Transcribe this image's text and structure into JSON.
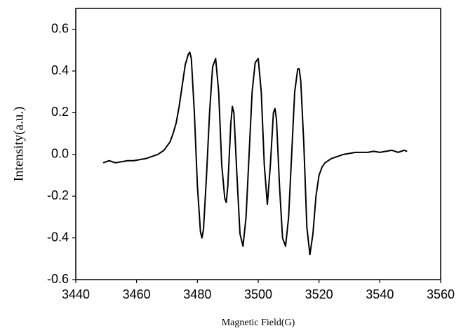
{
  "chart_data": {
    "type": "line",
    "x_label": "Magnetic Field(G)",
    "y_label": "Intensity(a.u.)",
    "xlim": [
      3440,
      3560
    ],
    "xticks": [
      3440,
      3460,
      3480,
      3500,
      3520,
      3540,
      3560
    ],
    "ylim": [
      -0.6,
      0.7
    ],
    "yticks": [
      -0.6,
      -0.4,
      -0.2,
      {
        "value": 0,
        "label": "0.0"
      },
      0.2,
      0.4,
      0.6
    ],
    "grid": false,
    "series": [
      {
        "color": "#000000",
        "x": [
          3449,
          3451,
          3453,
          3455,
          3457,
          3459,
          3461,
          3463,
          3465,
          3467,
          3468,
          3469,
          3470,
          3471,
          3472,
          3473,
          3474,
          3475,
          3476,
          3477,
          3477.5,
          3478,
          3479,
          3480,
          3481,
          3481.5,
          3482,
          3483,
          3484,
          3485,
          3486,
          3487,
          3488,
          3489,
          3489.5,
          3490,
          3491,
          3491.5,
          3492,
          3493,
          3494,
          3495,
          3496,
          3497,
          3498,
          3499,
          3500,
          3501,
          3502,
          3503,
          3504,
          3505,
          3505.5,
          3506,
          3507,
          3508,
          3509,
          3510,
          3511,
          3512,
          3513,
          3513.5,
          3514,
          3515,
          3516,
          3517,
          3518,
          3519,
          3520,
          3521,
          3522,
          3524,
          3526,
          3528,
          3530,
          3532,
          3534,
          3536,
          3538,
          3540,
          3542,
          3544,
          3546,
          3548,
          3549
        ],
        "values": [
          -0.04,
          -0.03,
          -0.04,
          -0.035,
          -0.03,
          -0.03,
          -0.025,
          -0.02,
          -0.01,
          0.0,
          0.01,
          0.02,
          0.04,
          0.06,
          0.1,
          0.15,
          0.23,
          0.33,
          0.43,
          0.48,
          0.49,
          0.46,
          0.2,
          -0.15,
          -0.37,
          -0.4,
          -0.36,
          -0.1,
          0.2,
          0.42,
          0.46,
          0.3,
          -0.05,
          -0.21,
          -0.23,
          -0.15,
          0.15,
          0.23,
          0.2,
          -0.1,
          -0.38,
          -0.44,
          -0.3,
          0.0,
          0.3,
          0.44,
          0.46,
          0.3,
          -0.05,
          -0.24,
          -0.05,
          0.2,
          0.22,
          0.17,
          -0.15,
          -0.4,
          -0.44,
          -0.3,
          0.0,
          0.3,
          0.41,
          0.41,
          0.35,
          0.05,
          -0.35,
          -0.48,
          -0.38,
          -0.2,
          -0.1,
          -0.06,
          -0.04,
          -0.02,
          -0.01,
          0.0,
          0.005,
          0.01,
          0.01,
          0.01,
          0.015,
          0.01,
          0.015,
          0.02,
          0.01,
          0.02,
          0.015
        ]
      }
    ]
  }
}
